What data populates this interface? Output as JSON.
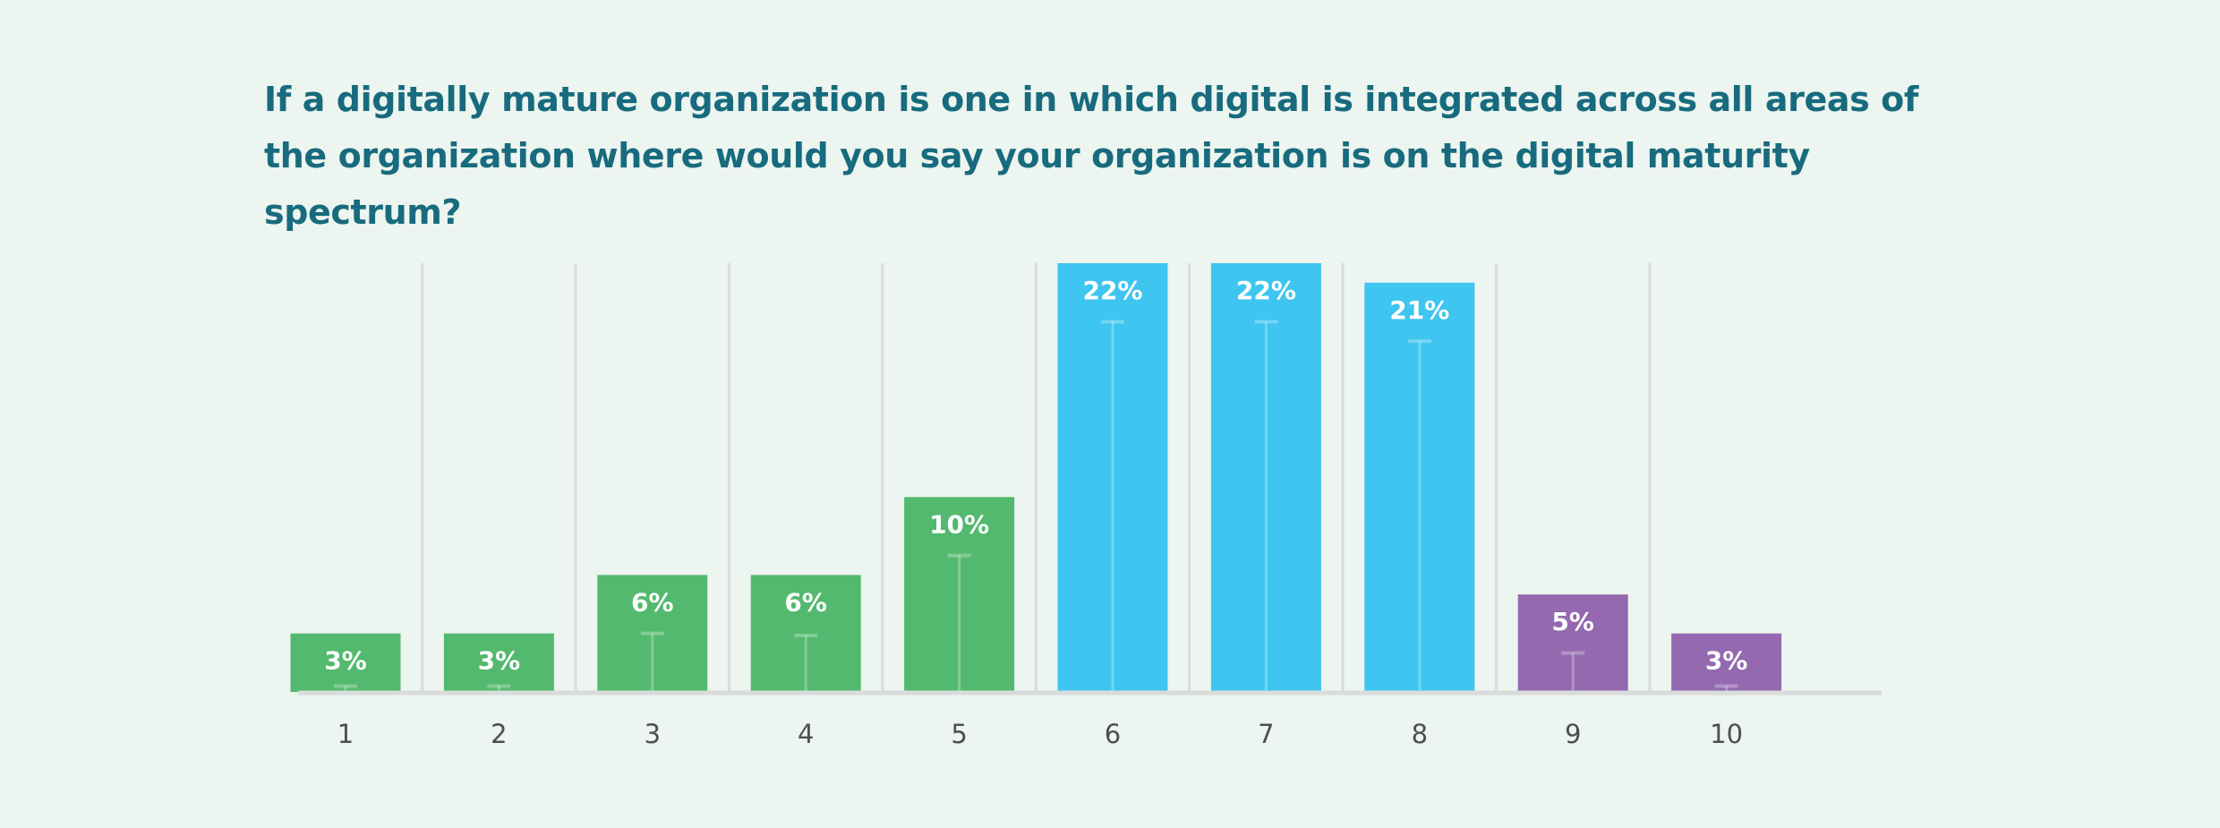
{
  "chart_data": {
    "type": "bar",
    "title": "If a digitally mature organization is one in which digital is integrated across all areas of the organization where would you say your organization is on the digital maturity spectrum?",
    "xlabel": "",
    "ylabel": "",
    "categories": [
      "1",
      "2",
      "3",
      "4",
      "5",
      "6",
      "7",
      "8",
      "9",
      "10"
    ],
    "values": [
      3,
      3,
      6,
      6,
      10,
      22,
      22,
      21,
      5,
      3
    ],
    "data_labels": [
      "3%",
      "3%",
      "6%",
      "6%",
      "10%",
      "22%",
      "22%",
      "21%",
      "5%",
      "3%"
    ],
    "bar_colors": [
      "#53b96e",
      "#53b96e",
      "#53b96e",
      "#53b96e",
      "#53b96e",
      "#3ec5f0",
      "#3ec5f0",
      "#3ec5f0",
      "#9469b0",
      "#9469b0"
    ],
    "error_bars": [
      0.3,
      0.3,
      3,
      2.9,
      7,
      19,
      19,
      18,
      2,
      0.3
    ],
    "ylim": [
      0,
      22
    ],
    "grid": "vertical separators",
    "legend": "none"
  },
  "colors": {
    "background": "#ecf5ef",
    "title": "#186b7e",
    "axis": "#d9dcdb",
    "tick_text": "#4a4f54"
  }
}
